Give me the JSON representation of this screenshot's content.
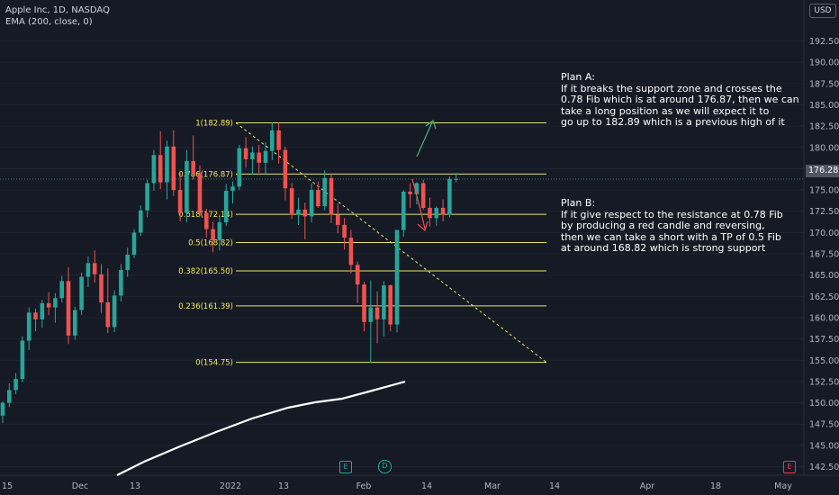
{
  "legend": {
    "symbol_line": "Apple Inc, 1D, NASDAQ",
    "indicator_line": "EMA (200, close, 0)"
  },
  "currency": "USD",
  "last_price": "176.28",
  "colors": {
    "background": "#161a25",
    "up": "#26a69a",
    "down": "#ef5350",
    "fib": "#e8e36a",
    "fib_label": "#f5e95a",
    "trendline": "#e8e36a",
    "ema": "#ffffff",
    "arrow_up": "#4caf82",
    "arrow_down": "#ef5350"
  },
  "chart_data": {
    "type": "candlestick",
    "yaxis": {
      "min": 141.5,
      "max": 195,
      "ticks": [
        "142.50",
        "145.00",
        "147.50",
        "150.00",
        "152.50",
        "155.00",
        "157.50",
        "160.00",
        "162.50",
        "165.00",
        "167.50",
        "170.00",
        "172.50",
        "175.00",
        "177.50",
        "180.00",
        "182.50",
        "185.00",
        "187.50",
        "190.00",
        "192.50"
      ]
    },
    "xaxis": {
      "labels": [
        "15",
        "Dec",
        "13",
        "2022",
        "13",
        "Feb",
        "14",
        "Mar",
        "14",
        "Apr",
        "18",
        "May"
      ]
    },
    "candles": [
      {
        "o": 148.5,
        "h": 150.2,
        "l": 147.6,
        "c": 150.0
      },
      {
        "o": 150.0,
        "h": 152.3,
        "l": 149.5,
        "c": 151.5
      },
      {
        "o": 151.5,
        "h": 153.5,
        "l": 151.0,
        "c": 152.8
      },
      {
        "o": 152.8,
        "h": 157.8,
        "l": 152.4,
        "c": 157.3
      },
      {
        "o": 157.3,
        "h": 161.2,
        "l": 156.2,
        "c": 160.6
      },
      {
        "o": 160.6,
        "h": 161.1,
        "l": 158.4,
        "c": 159.8
      },
      {
        "o": 159.8,
        "h": 162.1,
        "l": 158.8,
        "c": 161.7
      },
      {
        "o": 161.7,
        "h": 163.0,
        "l": 160.3,
        "c": 161.2
      },
      {
        "o": 161.2,
        "h": 162.9,
        "l": 159.4,
        "c": 162.3
      },
      {
        "o": 162.3,
        "h": 164.9,
        "l": 161.8,
        "c": 164.3
      },
      {
        "o": 164.3,
        "h": 165.9,
        "l": 156.9,
        "c": 157.9
      },
      {
        "o": 157.9,
        "h": 161.3,
        "l": 157.4,
        "c": 160.9
      },
      {
        "o": 160.9,
        "h": 165.3,
        "l": 160.3,
        "c": 164.8
      },
      {
        "o": 164.8,
        "h": 167.2,
        "l": 163.6,
        "c": 166.4
      },
      {
        "o": 166.4,
        "h": 167.9,
        "l": 164.1,
        "c": 165.1
      },
      {
        "o": 165.1,
        "h": 166.3,
        "l": 160.6,
        "c": 161.8
      },
      {
        "o": 161.8,
        "h": 165.8,
        "l": 158.2,
        "c": 158.9
      },
      {
        "o": 158.9,
        "h": 163.2,
        "l": 158.3,
        "c": 162.6
      },
      {
        "o": 162.6,
        "h": 166.3,
        "l": 161.9,
        "c": 165.6
      },
      {
        "o": 165.6,
        "h": 168.2,
        "l": 164.8,
        "c": 167.4
      },
      {
        "o": 167.4,
        "h": 170.4,
        "l": 167.0,
        "c": 170.0
      },
      {
        "o": 170.0,
        "h": 173.2,
        "l": 169.6,
        "c": 172.6
      },
      {
        "o": 172.6,
        "h": 176.2,
        "l": 171.8,
        "c": 175.8
      },
      {
        "o": 175.8,
        "h": 179.7,
        "l": 174.9,
        "c": 179.1
      },
      {
        "o": 179.1,
        "h": 181.9,
        "l": 175.1,
        "c": 175.9
      },
      {
        "o": 175.9,
        "h": 180.8,
        "l": 173.9,
        "c": 180.1
      },
      {
        "o": 180.1,
        "h": 182.0,
        "l": 174.3,
        "c": 175.0
      },
      {
        "o": 175.0,
        "h": 177.2,
        "l": 171.3,
        "c": 172.3
      },
      {
        "o": 172.3,
        "h": 179.7,
        "l": 171.2,
        "c": 178.4
      },
      {
        "o": 178.4,
        "h": 181.4,
        "l": 176.2,
        "c": 176.9
      },
      {
        "o": 176.9,
        "h": 177.9,
        "l": 171.9,
        "c": 172.3
      },
      {
        "o": 172.3,
        "h": 172.8,
        "l": 169.4,
        "c": 170.4
      },
      {
        "o": 170.4,
        "h": 171.3,
        "l": 167.7,
        "c": 169.1
      },
      {
        "o": 169.1,
        "h": 172.1,
        "l": 167.9,
        "c": 171.2
      },
      {
        "o": 171.2,
        "h": 175.7,
        "l": 170.8,
        "c": 174.9
      },
      {
        "o": 174.9,
        "h": 176.0,
        "l": 173.4,
        "c": 175.4
      },
      {
        "o": 175.4,
        "h": 180.3,
        "l": 175.0,
        "c": 179.9
      },
      {
        "o": 179.9,
        "h": 181.2,
        "l": 177.6,
        "c": 178.6
      },
      {
        "o": 178.6,
        "h": 180.1,
        "l": 176.8,
        "c": 179.4
      },
      {
        "o": 179.4,
        "h": 180.3,
        "l": 177.0,
        "c": 178.2
      },
      {
        "o": 178.2,
        "h": 180.6,
        "l": 176.9,
        "c": 179.6
      },
      {
        "o": 179.6,
        "h": 182.9,
        "l": 178.5,
        "c": 182.0
      },
      {
        "o": 182.0,
        "h": 182.9,
        "l": 178.1,
        "c": 179.7
      },
      {
        "o": 179.7,
        "h": 180.1,
        "l": 173.8,
        "c": 175.2
      },
      {
        "o": 175.2,
        "h": 175.8,
        "l": 171.6,
        "c": 172.1
      },
      {
        "o": 172.1,
        "h": 174.1,
        "l": 170.9,
        "c": 172.7
      },
      {
        "o": 172.7,
        "h": 173.5,
        "l": 169.2,
        "c": 171.9
      },
      {
        "o": 171.9,
        "h": 175.8,
        "l": 171.2,
        "c": 175.0
      },
      {
        "o": 175.0,
        "h": 176.0,
        "l": 172.9,
        "c": 173.1
      },
      {
        "o": 173.1,
        "h": 177.3,
        "l": 172.6,
        "c": 176.4
      },
      {
        "o": 176.4,
        "h": 176.9,
        "l": 171.1,
        "c": 172.1
      },
      {
        "o": 172.1,
        "h": 173.4,
        "l": 169.9,
        "c": 170.9
      },
      {
        "o": 170.9,
        "h": 171.7,
        "l": 168.0,
        "c": 169.4
      },
      {
        "o": 169.4,
        "h": 170.3,
        "l": 165.2,
        "c": 166.2
      },
      {
        "o": 166.2,
        "h": 166.6,
        "l": 161.7,
        "c": 163.9
      },
      {
        "o": 163.9,
        "h": 164.2,
        "l": 158.4,
        "c": 159.5
      },
      {
        "o": 159.5,
        "h": 164.4,
        "l": 154.7,
        "c": 161.2
      },
      {
        "o": 161.2,
        "h": 163.1,
        "l": 157.0,
        "c": 159.8
      },
      {
        "o": 159.8,
        "h": 164.3,
        "l": 157.8,
        "c": 163.8
      },
      {
        "o": 163.8,
        "h": 163.9,
        "l": 158.4,
        "c": 159.2
      },
      {
        "o": 159.2,
        "h": 170.3,
        "l": 158.3,
        "c": 170.3
      },
      {
        "o": 170.3,
        "h": 175.0,
        "l": 169.5,
        "c": 174.8
      },
      {
        "o": 174.8,
        "h": 175.8,
        "l": 172.9,
        "c": 174.5
      },
      {
        "o": 174.5,
        "h": 175.9,
        "l": 173.3,
        "c": 175.8
      },
      {
        "o": 175.8,
        "h": 176.2,
        "l": 172.7,
        "c": 172.9
      },
      {
        "o": 172.9,
        "h": 174.1,
        "l": 170.7,
        "c": 171.7
      },
      {
        "o": 171.7,
        "h": 173.1,
        "l": 170.8,
        "c": 172.9
      },
      {
        "o": 172.9,
        "h": 173.9,
        "l": 171.3,
        "c": 172.1
      },
      {
        "o": 172.1,
        "h": 176.6,
        "l": 171.8,
        "c": 176.3
      },
      {
        "o": 176.3,
        "h": 177.0,
        "l": 175.9,
        "c": 176.3
      }
    ],
    "ema": [
      {
        "i": 0,
        "v": 141.5
      },
      {
        "i": 10,
        "v": 143.6
      },
      {
        "i": 20,
        "v": 145.4
      },
      {
        "i": 30,
        "v": 147.1
      },
      {
        "i": 40,
        "v": 148.5
      },
      {
        "i": 50,
        "v": 149.6
      },
      {
        "i": 60,
        "v": 150.5
      },
      {
        "i": 69,
        "v": 152.3
      }
    ],
    "fib_levels": [
      {
        "label": "1(182.89)",
        "value": 182.89
      },
      {
        "label": "0.786(176.87)",
        "value": 176.87
      },
      {
        "label": "0.618(172.14)",
        "value": 172.14
      },
      {
        "label": "0.5(168.82)",
        "value": 168.82
      },
      {
        "label": "0.382(165.50)",
        "value": 165.5
      },
      {
        "label": "0.236(161.39)",
        "value": 161.39
      },
      {
        "label": "0(154.75)",
        "value": 154.75
      }
    ],
    "fib_trendline": {
      "from": 182.89,
      "to": 154.75
    },
    "event_badges": [
      "E",
      "D",
      "E"
    ]
  },
  "notes": {
    "plan_a": [
      "Plan A:",
      "If it breaks the support zone and crosses the",
      "0.78 Fib which is at around 176.87, then we can",
      "take a long position as we will expect it to",
      "go up to 182.89 which is a previous high of it"
    ],
    "plan_b": [
      "Plan B:",
      "If it give respect to the resistance at 0.78 Fib",
      "by producing a red candle and reversing,",
      "then we can take a short with a TP of 0.5 Fib",
      "at around 168.82 which is strong support"
    ]
  }
}
